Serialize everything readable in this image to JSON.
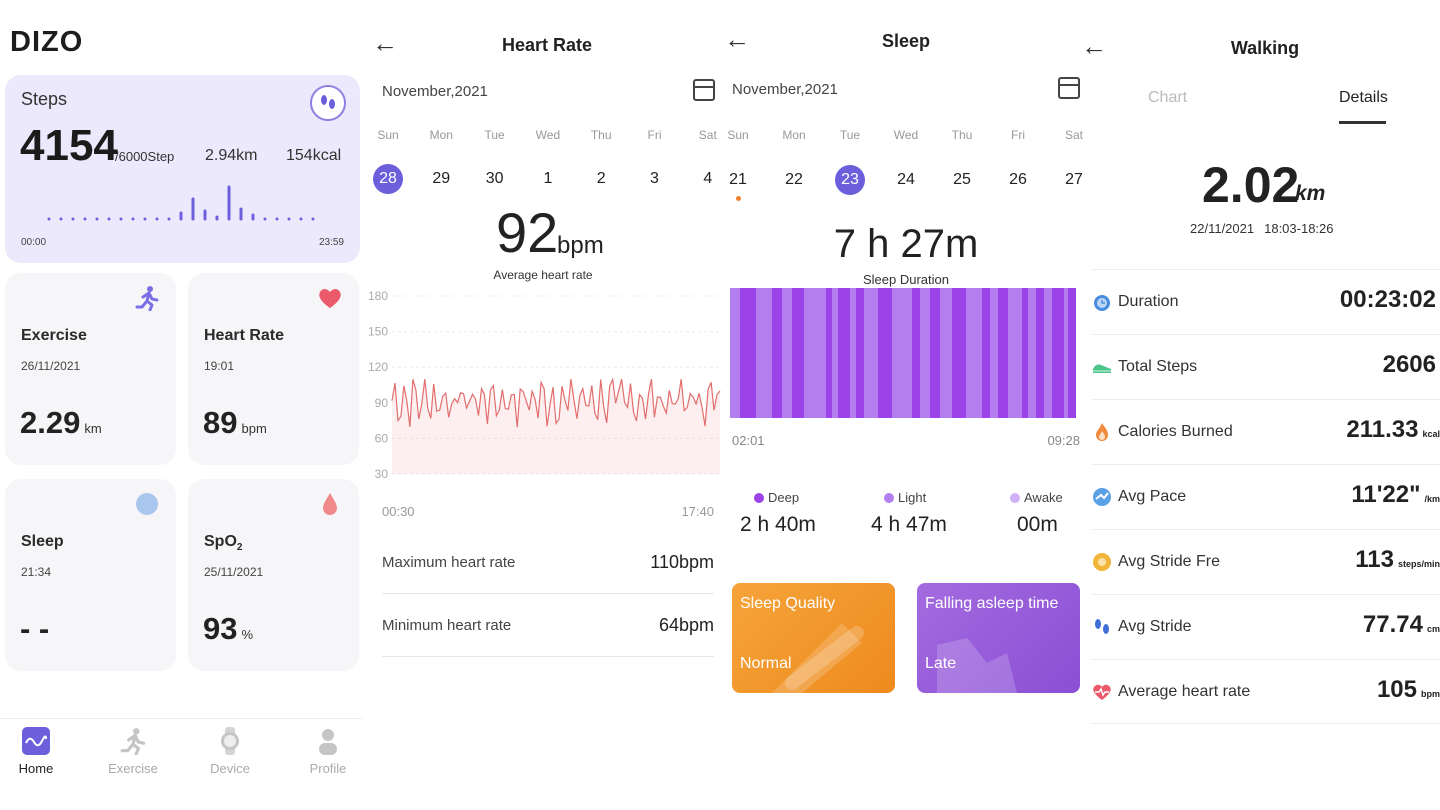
{
  "home": {
    "brand": "DIZO",
    "steps": {
      "label": "Steps",
      "count": "4154",
      "goal": "/6000Step",
      "distance": "2.94km",
      "calories": "154kcal",
      "start_time": "00:00",
      "end_time": "23:59"
    },
    "exercise": {
      "title": "Exercise",
      "date": "26/11/2021",
      "value": "2.29",
      "unit": "km"
    },
    "heart": {
      "title": "Heart Rate",
      "time": "19:01",
      "value": "89",
      "unit": "bpm"
    },
    "sleep": {
      "title": "Sleep",
      "time": "21:34",
      "value": "- -"
    },
    "spo2": {
      "title": "SpO",
      "sub": "2",
      "date": "25/11/2021",
      "value": "93",
      "unit": "%"
    },
    "nav": [
      {
        "label": "Home"
      },
      {
        "label": "Exercise"
      },
      {
        "label": "Device"
      },
      {
        "label": "Profile"
      }
    ]
  },
  "heart_rate": {
    "title": "Heart Rate",
    "month": "November,2021",
    "weekdays": [
      "Sun",
      "Mon",
      "Tue",
      "Wed",
      "Thu",
      "Fri",
      "Sat"
    ],
    "days": [
      "28",
      "29",
      "30",
      "1",
      "2",
      "3",
      "4"
    ],
    "selected_day": "28",
    "average": "92",
    "unit": "bpm",
    "average_label": "Average heart rate",
    "y_ticks": [
      "180",
      "150",
      "120",
      "90",
      "60",
      "30"
    ],
    "x_start": "00:30",
    "x_end": "17:40",
    "max_label": "Maximum heart rate",
    "max_value": "110bpm",
    "min_label": "Minimum heart rate",
    "min_value": "64bpm",
    "line_color": "#e36d6d"
  },
  "sleep_screen": {
    "title": "Sleep",
    "month": "November,2021",
    "weekdays": [
      "Sun",
      "Mon",
      "Tue",
      "Wed",
      "Thu",
      "Fri",
      "Sat"
    ],
    "days": [
      "21",
      "22",
      "23",
      "24",
      "25",
      "26",
      "27"
    ],
    "selected_day": "23",
    "duration": "7 h 27m",
    "duration_label": "Sleep Duration",
    "start": "02:01",
    "end": "09:28",
    "deep_label": "Deep",
    "deep_value": "2 h 40m",
    "light_label": "Light",
    "light_value": "4 h 47m",
    "awake_label": "Awake",
    "awake_value": "00m",
    "quality_title": "Sleep Quality",
    "quality_value": "Normal",
    "falling_title": "Falling asleep time",
    "falling_value": "Late",
    "deep_color": "#9b42e8",
    "light_color": "#b27ef0",
    "awake_color": "#d0b0f6"
  },
  "walking": {
    "title": "Walking",
    "tab_chart": "Chart",
    "tab_details": "Details",
    "distance": "2.02",
    "unit": "km",
    "date": "22/11/2021",
    "time_range": "18:03-18:26",
    "rows": [
      {
        "label": "Duration",
        "value": "00:23:02",
        "unit": ""
      },
      {
        "label": "Total Steps",
        "value": "2606",
        "unit": ""
      },
      {
        "label": "Calories Burned",
        "value": "211.33",
        "unit": "kcal"
      },
      {
        "label": "Avg Pace",
        "value": "11'22\"",
        "unit": "/km"
      },
      {
        "label": "Avg Stride Fre",
        "value": "113",
        "unit": "steps/min"
      },
      {
        "label": "Avg Stride",
        "value": "77.74",
        "unit": "cm"
      },
      {
        "label": "Average heart rate",
        "value": "105",
        "unit": "bpm"
      }
    ]
  }
}
